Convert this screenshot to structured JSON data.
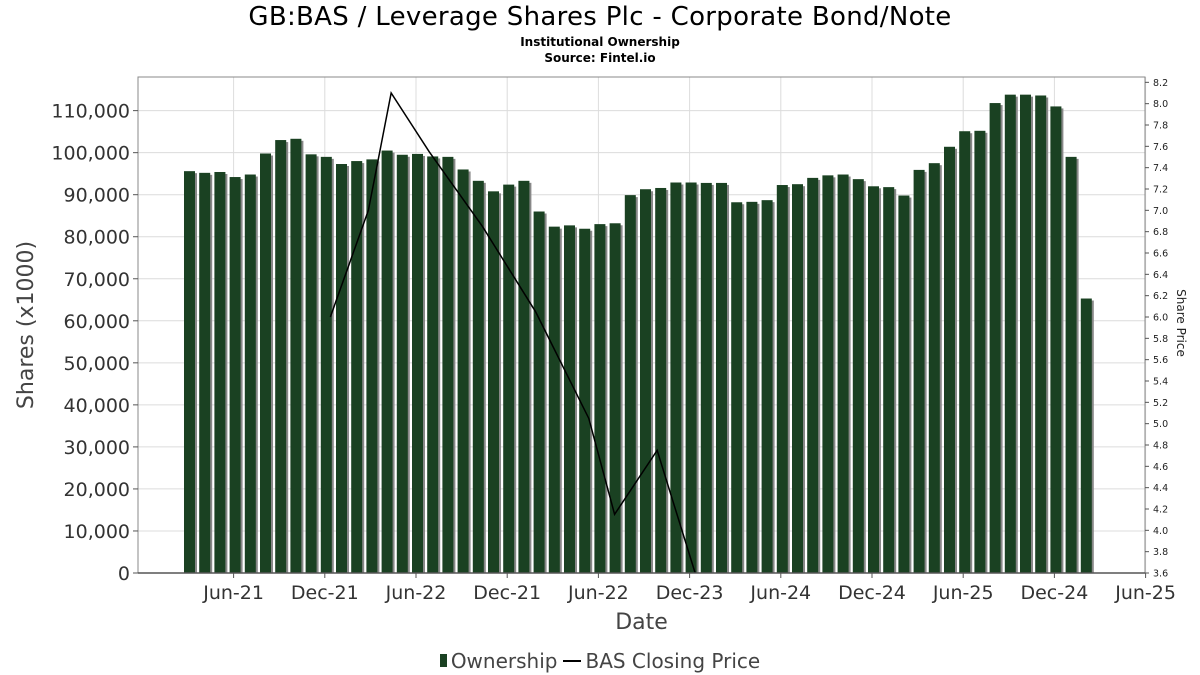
{
  "title": "GB:BAS / Leverage Shares Plc - Corporate Bond/Note",
  "subtitle": "Institutional Ownership",
  "source": "Source: Fintel.io",
  "legend": {
    "ownership": "Ownership",
    "price": "BAS Closing Price"
  },
  "colors": {
    "bar": "#1a4122",
    "bar_shadow": "#888888",
    "line": "#000000",
    "grid": "#dcdcdc"
  },
  "chart_data": {
    "type": "bar",
    "xlabel": "Date",
    "ylabel": "Shares (x1000)",
    "y2label": "Share Price",
    "ylim": [
      0,
      118000
    ],
    "y2lim": [
      3.6,
      8.25
    ],
    "y_ticks": [
      0,
      10000,
      20000,
      30000,
      40000,
      50000,
      60000,
      70000,
      80000,
      90000,
      100000,
      110000
    ],
    "y_tick_labels": [
      "0",
      "10,000",
      "20,000",
      "30,000",
      "40,000",
      "50,000",
      "60,000",
      "70,000",
      "80,000",
      "90,000",
      "100,000",
      "110,000"
    ],
    "y2_ticks": [
      3.6,
      3.8,
      4.0,
      4.2,
      4.4,
      4.6,
      4.8,
      5.0,
      5.2,
      5.4,
      5.6,
      5.8,
      6.0,
      6.2,
      6.4,
      6.6,
      6.8,
      7.0,
      7.2,
      7.4,
      7.6,
      7.8,
      8.0,
      8.2
    ],
    "y2_tick_labels": [
      "3.6",
      "3.8",
      "4.0",
      "4.2",
      "4.4",
      "4.6",
      "4.8",
      "5.0",
      "5.2",
      "5.4",
      "5.6",
      "5.8",
      "6.0",
      "6.2",
      "6.4",
      "6.6",
      "6.8",
      "7.0",
      "7.2",
      "7.4",
      "7.6",
      "7.8",
      "8.0",
      "8.2"
    ],
    "x_tick_labels": [
      "Jun-21",
      "Dec-21",
      "Jun-22",
      "Dec-21",
      "Jun-22",
      "Dec-23",
      "Jun-24",
      "Dec-24",
      "Jun-25",
      "Dec-24",
      "Jun-25"
    ],
    "x_tick_positions": [
      3,
      9,
      15,
      21,
      27,
      33,
      39,
      45,
      51,
      57,
      63
    ],
    "ownership_values": [
      95600,
      95200,
      95400,
      94200,
      94800,
      99800,
      103000,
      103300,
      99600,
      99000,
      97300,
      98000,
      98400,
      100500,
      99500,
      99700,
      99100,
      99000,
      96000,
      93300,
      90800,
      92400,
      93300,
      86000,
      82400,
      82700,
      81900,
      83000,
      83200,
      89900,
      91300,
      91600,
      92900,
      92900,
      92800,
      92800,
      88200,
      88300,
      88700,
      92300,
      92500,
      94000,
      94600,
      94800,
      93700,
      92000,
      91800,
      89800,
      95900,
      97500,
      101400,
      105100,
      105200,
      111800,
      113800,
      113800,
      113600,
      111000,
      99000,
      65300
    ],
    "price_series": [
      {
        "x": 9.3,
        "price": 6.0
      },
      {
        "x": 11.8,
        "price": 7.0
      },
      {
        "x": 13.3,
        "price": 8.1
      },
      {
        "x": 15.8,
        "price": 7.55
      },
      {
        "x": 19.3,
        "price": 6.85
      },
      {
        "x": 22.8,
        "price": 6.05
      },
      {
        "x": 26.3,
        "price": 5.05
      },
      {
        "x": 28.0,
        "price": 4.15
      },
      {
        "x": 30.8,
        "price": 4.75
      },
      {
        "x": 33.3,
        "price": 3.6
      }
    ]
  }
}
